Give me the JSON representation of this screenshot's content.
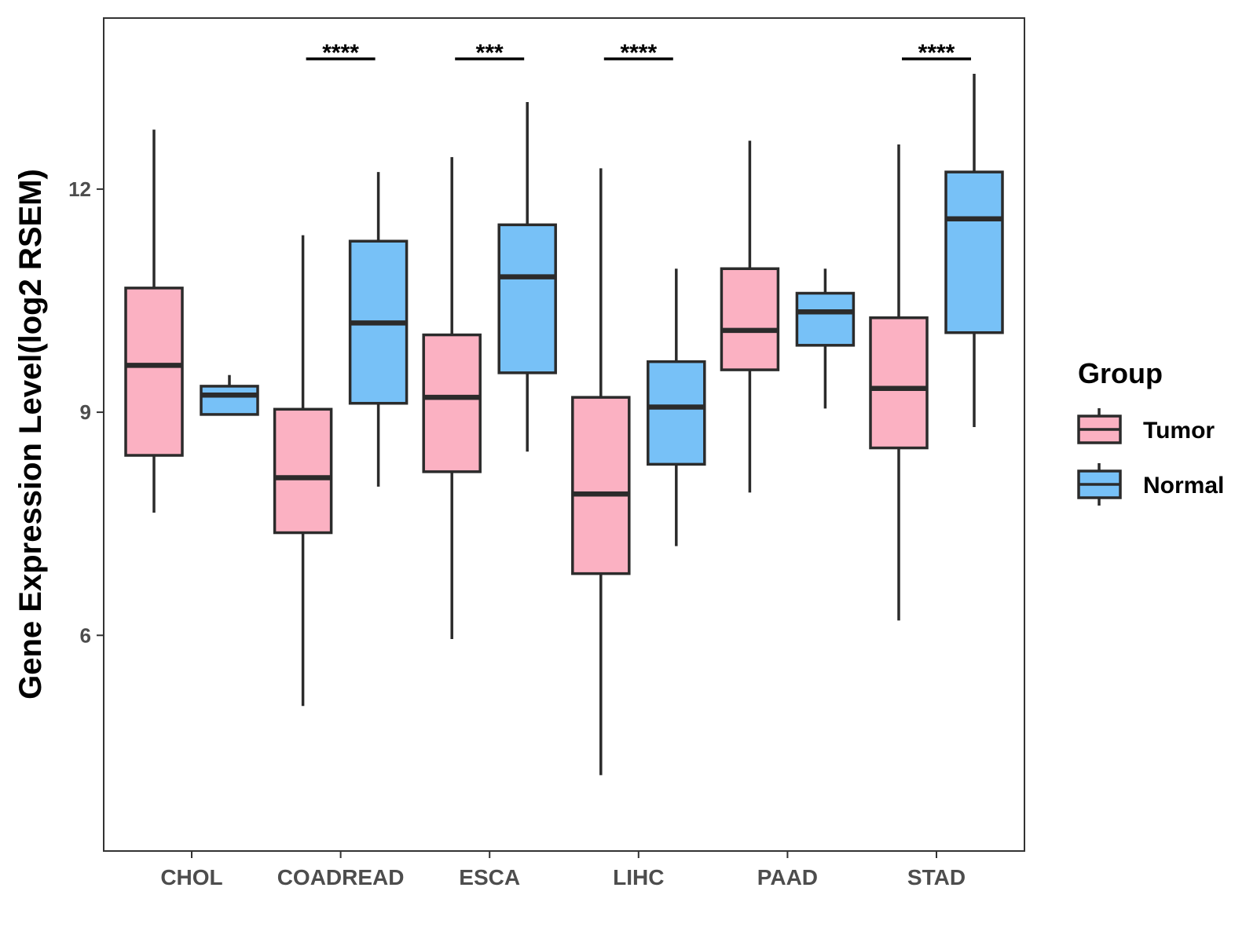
{
  "chart_data": {
    "type": "boxplot",
    "title": "",
    "xlabel": "",
    "ylabel": "Gene Expression Level(log2 RSEM)",
    "ylim": [
      3.1,
      14.3
    ],
    "yticks": [
      6,
      9,
      12
    ],
    "grid": false,
    "categories": [
      "CHOL",
      "COADREAD",
      "ESCA",
      "LIHC",
      "PAAD",
      "STAD"
    ],
    "legend": {
      "title": "Group",
      "position": "right",
      "entries": [
        {
          "name": "Tumor",
          "color": "#FBB1C2"
        },
        {
          "name": "Normal",
          "color": "#77C1F7"
        }
      ]
    },
    "series": [
      {
        "name": "Tumor",
        "color": "#FBB1C2",
        "boxes": [
          {
            "whisker_low": 7.65,
            "q1": 8.42,
            "median": 9.63,
            "q3": 10.67,
            "whisker_high": 12.8
          },
          {
            "whisker_low": 5.05,
            "q1": 7.38,
            "median": 8.12,
            "q3": 9.04,
            "whisker_high": 11.38
          },
          {
            "whisker_low": 5.95,
            "q1": 8.2,
            "median": 9.2,
            "q3": 10.04,
            "whisker_high": 12.43
          },
          {
            "whisker_low": 4.12,
            "q1": 6.83,
            "median": 7.9,
            "q3": 9.2,
            "whisker_high": 12.28
          },
          {
            "whisker_low": 7.92,
            "q1": 9.57,
            "median": 10.1,
            "q3": 10.93,
            "whisker_high": 12.65
          },
          {
            "whisker_low": 6.2,
            "q1": 8.52,
            "median": 9.32,
            "q3": 10.27,
            "whisker_high": 12.6
          }
        ]
      },
      {
        "name": "Normal",
        "color": "#77C1F7",
        "boxes": [
          {
            "whisker_low": 8.97,
            "q1": 8.97,
            "median": 9.23,
            "q3": 9.35,
            "whisker_high": 9.5
          },
          {
            "whisker_low": 8.0,
            "q1": 9.12,
            "median": 10.2,
            "q3": 11.3,
            "whisker_high": 12.23
          },
          {
            "whisker_low": 8.47,
            "q1": 9.53,
            "median": 10.82,
            "q3": 11.52,
            "whisker_high": 13.17
          },
          {
            "whisker_low": 7.2,
            "q1": 8.3,
            "median": 9.07,
            "q3": 9.68,
            "whisker_high": 10.93
          },
          {
            "whisker_low": 9.05,
            "q1": 9.9,
            "median": 10.35,
            "q3": 10.6,
            "whisker_high": 10.93
          },
          {
            "whisker_low": 8.8,
            "q1": 10.07,
            "median": 11.6,
            "q3": 12.23,
            "whisker_high": 13.55
          }
        ]
      }
    ],
    "annotations": [
      {
        "category": "CHOL",
        "label": ""
      },
      {
        "category": "COADREAD",
        "label": "****"
      },
      {
        "category": "ESCA",
        "label": "***"
      },
      {
        "category": "LIHC",
        "label": "****"
      },
      {
        "category": "PAAD",
        "label": ""
      },
      {
        "category": "STAD",
        "label": "****"
      }
    ]
  }
}
